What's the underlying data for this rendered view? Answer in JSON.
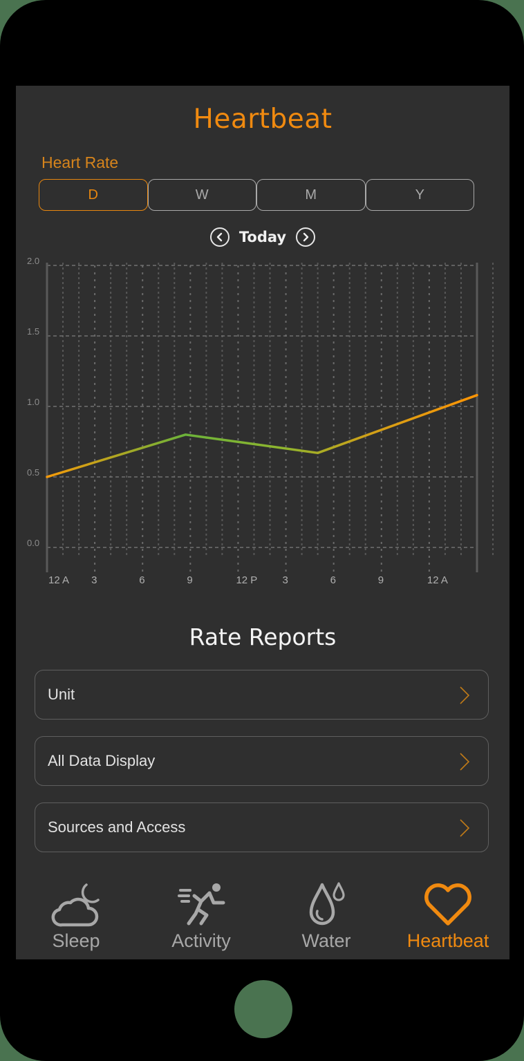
{
  "header": {
    "title": "Heartbeat"
  },
  "metric": {
    "label": "Heart Rate",
    "ranges": [
      {
        "label": "D",
        "active": true
      },
      {
        "label": "W",
        "active": false
      },
      {
        "label": "M",
        "active": false
      },
      {
        "label": "Y",
        "active": false
      }
    ]
  },
  "date_nav": {
    "prev_icon": "chevron-left-circle-icon",
    "label": "Today",
    "next_icon": "chevron-right-circle-icon"
  },
  "chart_data": {
    "type": "line",
    "title": "",
    "xlabel": "",
    "ylabel": "",
    "x_tick_labels": [
      "12 A",
      "3",
      "6",
      "9",
      "12 P",
      "3",
      "6",
      "9",
      "12 A"
    ],
    "y_tick_labels": [
      "0.0",
      "0.5",
      "1.0",
      "1.5",
      "2.0"
    ],
    "ylim": [
      0.0,
      2.0
    ],
    "xlim_hours": [
      0,
      27
    ],
    "grid": true,
    "legend": null,
    "series": [
      {
        "name": "Heart Rate",
        "x_hours": [
          0,
          8.7,
          17.0,
          27.0
        ],
        "values": [
          0.5,
          0.8,
          0.67,
          1.08
        ],
        "gradient": [
          "#f59a0a",
          "#6cb33a",
          "#6cb33a",
          "#f59a0a"
        ]
      }
    ]
  },
  "reports": {
    "title": "Rate Reports",
    "items": [
      {
        "label": "Unit"
      },
      {
        "label": "All Data Display"
      },
      {
        "label": "Sources and Access"
      }
    ]
  },
  "tab_bar": {
    "items": [
      {
        "label": "Sleep",
        "icon": "cloud-moon-icon",
        "active": false
      },
      {
        "label": "Activity",
        "icon": "running-icon",
        "active": false
      },
      {
        "label": "Water",
        "icon": "water-drops-icon",
        "active": false
      },
      {
        "label": "Heartbeat",
        "icon": "heart-icon",
        "active": true
      }
    ]
  },
  "colors": {
    "accent": "#f08a10",
    "screen_bg": "#2f2f2f",
    "frame": "#000000",
    "page_bg": "#4a7350",
    "inactive": "#a8a8a8",
    "line_start": "#f59a0a",
    "line_mid": "#6cb33a"
  }
}
